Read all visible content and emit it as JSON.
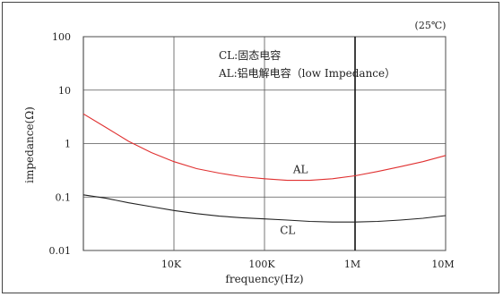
{
  "chart_data": {
    "type": "line",
    "corner_note": "(25℃)",
    "xlabel": "frequency(Hz)",
    "ylabel": "impedance(Ω)",
    "x_scale": "log",
    "y_scale": "log",
    "xlim": [
      1000,
      10000000
    ],
    "ylim": [
      0.01,
      100
    ],
    "x_ticks": [
      {
        "value": 10000,
        "label": "10K"
      },
      {
        "value": 100000,
        "label": "100K"
      },
      {
        "value": 1000000,
        "label": "1M"
      },
      {
        "value": 10000000,
        "label": "10M"
      }
    ],
    "y_ticks": [
      {
        "value": 100,
        "label": "100"
      },
      {
        "value": 10,
        "label": "10"
      },
      {
        "value": 1,
        "label": "1"
      },
      {
        "value": 0.1,
        "label": "0.1"
      },
      {
        "value": 0.01,
        "label": "0.01"
      }
    ],
    "grid": true,
    "annotations": {
      "legend_line1": "CL:固态电容",
      "legend_line2": "AL:铝电解电容（low Impedance）"
    },
    "series": [
      {
        "name": "AL",
        "color": "#e03030",
        "points": [
          [
            1000,
            3.6
          ],
          [
            1778,
            2.0
          ],
          [
            3162,
            1.1
          ],
          [
            5623,
            0.68
          ],
          [
            10000,
            0.46
          ],
          [
            17783,
            0.34
          ],
          [
            31623,
            0.28
          ],
          [
            56234,
            0.24
          ],
          [
            100000,
            0.22
          ],
          [
            177828,
            0.205
          ],
          [
            316228,
            0.205
          ],
          [
            562341,
            0.22
          ],
          [
            1000000,
            0.25
          ],
          [
            1778279,
            0.3
          ],
          [
            3162278,
            0.37
          ],
          [
            5623413,
            0.46
          ],
          [
            10000000,
            0.6
          ]
        ]
      },
      {
        "name": "CL",
        "color": "#222222",
        "points": [
          [
            1000,
            0.11
          ],
          [
            1778,
            0.095
          ],
          [
            3162,
            0.078
          ],
          [
            5623,
            0.066
          ],
          [
            10000,
            0.056
          ],
          [
            17783,
            0.049
          ],
          [
            31623,
            0.044
          ],
          [
            56234,
            0.041
          ],
          [
            100000,
            0.039
          ],
          [
            177828,
            0.037
          ],
          [
            316228,
            0.035
          ],
          [
            562341,
            0.034
          ],
          [
            1000000,
            0.034
          ],
          [
            1778279,
            0.035
          ],
          [
            3162278,
            0.037
          ],
          [
            5623413,
            0.04
          ],
          [
            10000000,
            0.045
          ]
        ]
      }
    ]
  }
}
